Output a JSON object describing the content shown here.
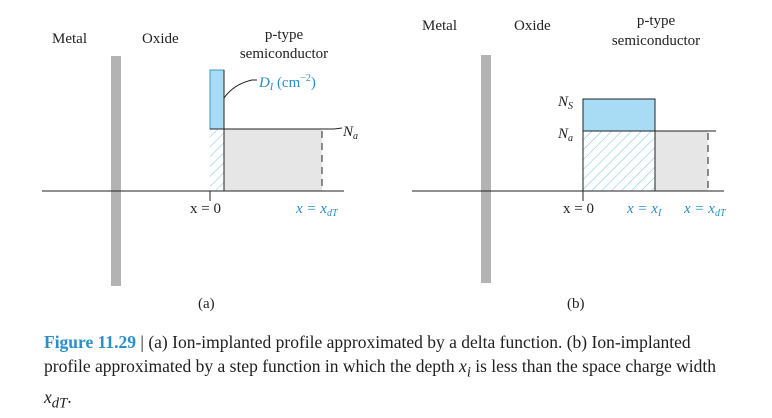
{
  "panel_a": {
    "metal": "Metal",
    "oxide": "Oxide",
    "ptype_line1": "p-type",
    "ptype_line2": "semiconductor",
    "delta_label_main": "D",
    "delta_label_sub": "I",
    "delta_label_unit": " (cm",
    "delta_label_exp": "−2",
    "delta_label_close": ")",
    "na_main": "N",
    "na_sub": "a",
    "x0": "x = 0",
    "xdt_main": "x = x",
    "xdt_sub": "dT",
    "tag": "(a)"
  },
  "panel_b": {
    "metal": "Metal",
    "oxide": "Oxide",
    "ptype_line1": "p-type",
    "ptype_line2": "semiconductor",
    "ns_main": "N",
    "ns_sub": "S",
    "na_main": "N",
    "na_sub": "a",
    "x0": "x = 0",
    "xi_main": "x = x",
    "xi_sub": "I",
    "xdt_main": "x = x",
    "xdt_sub": "dT",
    "tag": "(b)"
  },
  "caption": {
    "figure": "Figure 11.29",
    "separator": " | ",
    "text_part1": "(a) Ion-implanted profile approximated by a delta function. (b) Ion-implanted profile approximated by a step function in which the depth ",
    "xi_main": "x",
    "xi_sub": "i",
    "text_part2": " is less than the space charge width ",
    "xdt_main": "x",
    "xdt_sub": "dT",
    "text_part3": "."
  },
  "colors": {
    "implant_blue": "#a8dcf5",
    "blue_edge": "#2a8fc8",
    "depletion_gray": "#e6e6e6",
    "oxide_bar": "#b3b3b3",
    "label_blue": "#2a8fc8"
  }
}
